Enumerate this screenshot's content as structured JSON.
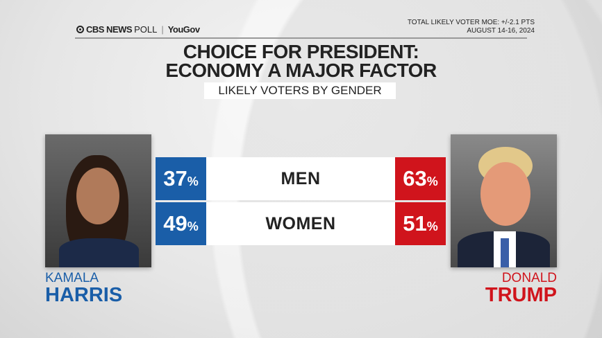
{
  "header": {
    "logo_text": "CBS NEWS POLL | YouGov",
    "brand": "CBS NEWS",
    "poll": "POLL",
    "partner": "YouGov",
    "moe": "TOTAL LIKELY VOTER MOE: +/-2.1 PTS",
    "dates": "AUGUST 14-16, 2024"
  },
  "title_line1": "CHOICE FOR PRESIDENT:",
  "title_line2": "ECONOMY A MAJOR FACTOR",
  "subtitle": "LIKELY VOTERS BY GENDER",
  "candidates": {
    "left": {
      "first": "KAMALA",
      "last": "HARRIS",
      "color": "#1a5ea8"
    },
    "right": {
      "first": "DONALD",
      "last": "TRUMP",
      "color": "#d0141c"
    }
  },
  "chart_data": {
    "type": "table",
    "title": "CHOICE FOR PRESIDENT: ECONOMY A MAJOR FACTOR",
    "subtitle": "LIKELY VOTERS BY GENDER",
    "columns": [
      "HARRIS",
      "TRUMP"
    ],
    "rows": [
      {
        "label": "MEN",
        "harris": "37",
        "trump": "63"
      },
      {
        "label": "WOMEN",
        "harris": "49",
        "trump": "51"
      }
    ],
    "unit": "%"
  }
}
